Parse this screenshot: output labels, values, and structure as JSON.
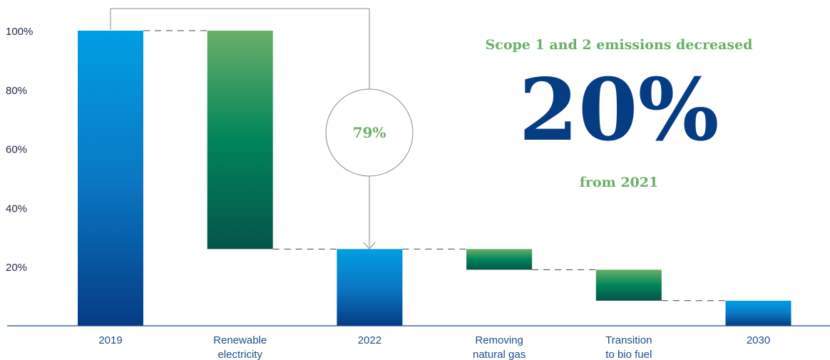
{
  "chart_data": {
    "type": "waterfall",
    "y_ticks": [
      "100%",
      "80%",
      "60%",
      "40%",
      "20%"
    ],
    "ylim": [
      0,
      100
    ],
    "categories": [
      {
        "label": "2019",
        "lines": [
          "2019"
        ],
        "kind": "total",
        "from": 0,
        "to": 100
      },
      {
        "label": "Renewable electricity",
        "lines": [
          "Renewable",
          "electricity"
        ],
        "kind": "decrease",
        "from": 100,
        "to": 26
      },
      {
        "label": "2022",
        "lines": [
          "2022"
        ],
        "kind": "total",
        "from": 0,
        "to": 26
      },
      {
        "label": "Removing natural gas",
        "lines": [
          "Removing",
          "natural gas"
        ],
        "kind": "decrease",
        "from": 26,
        "to": 19
      },
      {
        "label": "Transition to bio fuel",
        "lines": [
          "Transition",
          "to bio fuel"
        ],
        "kind": "decrease",
        "from": 19,
        "to": 8.5
      },
      {
        "label": "2030",
        "lines": [
          "2030"
        ],
        "kind": "total",
        "from": 0,
        "to": 8.5
      }
    ],
    "callout": "79%"
  },
  "headline": {
    "subtitle": "Scope 1 and 2 emissions decreased",
    "value": "20%",
    "caption": "from 2021"
  },
  "colors": {
    "blue_top": "#009ee3",
    "blue_bottom": "#063c84",
    "green_top": "#6aaf6a",
    "green_mid": "#00845a",
    "green_bottom": "#07544a",
    "axis": "#1f4e8c"
  }
}
